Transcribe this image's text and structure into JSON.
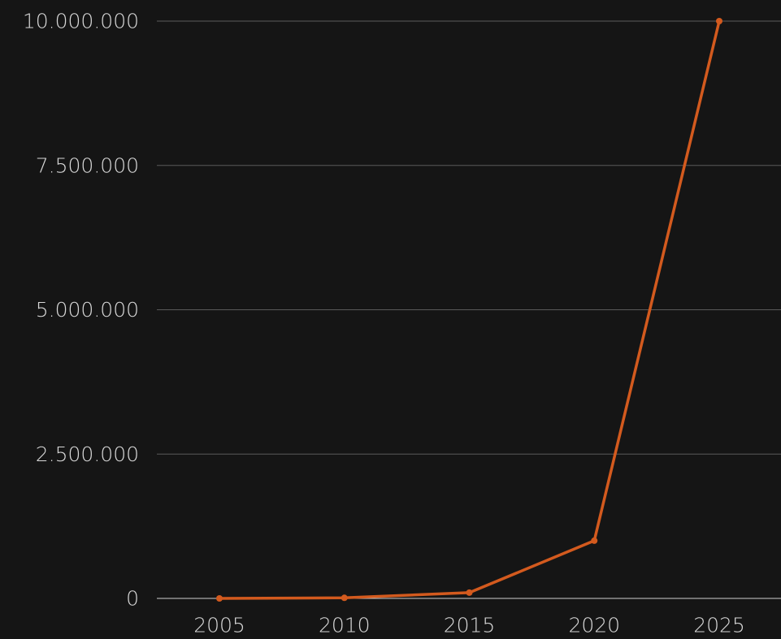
{
  "chart_data": {
    "type": "line",
    "title": "",
    "xlabel": "",
    "ylabel": "",
    "x": [
      2005,
      2010,
      2015,
      2020,
      2025
    ],
    "series": [
      {
        "values": [
          0,
          10000,
          100000,
          1000000,
          10000000
        ]
      }
    ],
    "x_tick_labels": [
      "2005",
      "2010",
      "2015",
      "2020",
      "2025"
    ],
    "y_ticks": [
      0,
      2500000,
      5000000,
      7500000,
      10000000
    ],
    "y_tick_labels": [
      "0",
      "2.500.000",
      "5.000.000",
      "7.500.000",
      "10.000.000"
    ],
    "ylim": [
      0,
      10000000
    ],
    "grid": true,
    "legend": "none",
    "colors": {
      "series": "#d35a1e",
      "background": "#151515",
      "grid": "#5a5a5a",
      "baseline": "#cfcfcf",
      "tick_text": "#d8d8d8"
    }
  }
}
